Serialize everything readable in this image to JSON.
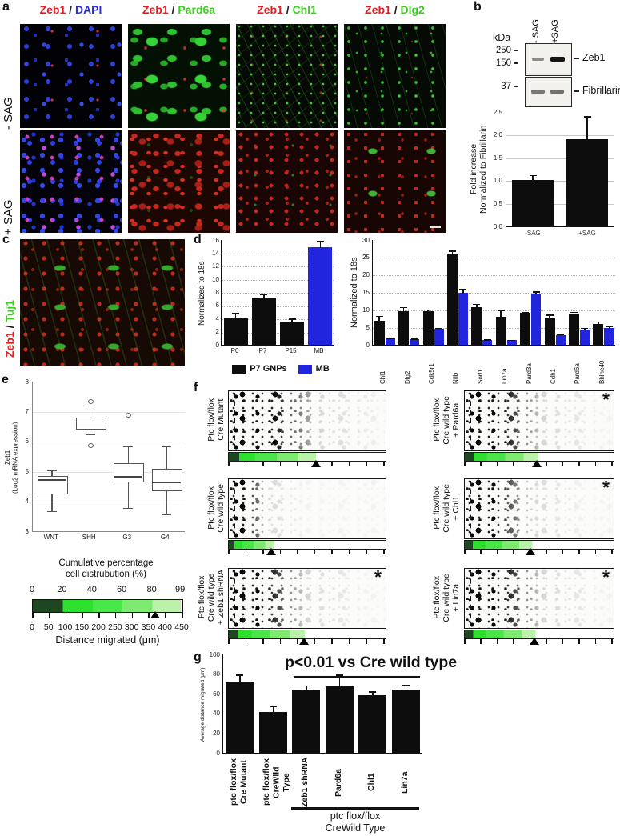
{
  "figure": {
    "panel_labels": {
      "a": "a",
      "b": "b",
      "c": "c",
      "d": "d",
      "e": "e",
      "f": "f",
      "g": "g"
    }
  },
  "panel_a": {
    "first_color": "#e02020",
    "sep_color": "#222222",
    "col_headers": [
      {
        "first": "Zeb1",
        "sep": " / ",
        "second": "DAPI",
        "second_color": "#2b2be2"
      },
      {
        "first": "Zeb1",
        "sep": " / ",
        "second": "Pard6a",
        "second_color": "#3fcc22"
      },
      {
        "first": "Zeb1",
        "sep": " / ",
        "second": "Chl1",
        "second_color": "#3fcc22"
      },
      {
        "first": "Zeb1",
        "sep": " / ",
        "second": "Dlg2",
        "second_color": "#3fcc22"
      }
    ],
    "row_labels": [
      "- SAG",
      "+ SAG"
    ]
  },
  "panel_b": {
    "blot": {
      "kda": "kDa",
      "lanes": [
        "- SAG",
        "+SAG"
      ],
      "markers": [
        "250",
        "150",
        "37"
      ],
      "bands": [
        "Zeb1",
        "Fibrillarin"
      ]
    },
    "chart_data": {
      "type": "bar",
      "ylabel_lines": [
        "Fold increase",
        "Normalized to Fibrillarin"
      ],
      "ymax": 2.5,
      "ytick_step": 0.5,
      "categories": [
        "-SAG",
        "+SAG"
      ],
      "values": [
        1.0,
        1.9
      ],
      "errors": [
        0.12,
        0.5
      ],
      "bar_color": "#0d0d0d"
    }
  },
  "panel_c": {
    "title": {
      "first": "Zeb1",
      "sep": " / ",
      "second": "Tuj1"
    },
    "first_color": "#e02020",
    "second_color": "#3fcc22"
  },
  "panel_d": {
    "chart_data_left": {
      "type": "bar",
      "ylabel": "Normalized to 18s",
      "ymax": 16,
      "ytick_step": 2,
      "categories": [
        "P0",
        "P7",
        "P15",
        "MB"
      ],
      "values": [
        4.0,
        7.2,
        3.5,
        14.8
      ],
      "errors": [
        0.85,
        0.5,
        0.5,
        1.0
      ],
      "colors": [
        "#0d0d0d",
        "#0d0d0d",
        "#0d0d0d",
        "#2126de"
      ]
    },
    "legend": [
      {
        "label": "P7 GNPs",
        "color": "#0d0d0d"
      },
      {
        "label": "MB",
        "color": "#2126de"
      }
    ],
    "chart_data_right": {
      "type": "bar",
      "ylabel": "Normalized to 18s",
      "ymax": 30,
      "ytick_step": 5,
      "categories": [
        "Chl1",
        "Dlg2",
        "Cdk5r1",
        "Nfib",
        "Sorl1",
        "Lin7a",
        "Pard3a",
        "Cdh1",
        "Pard6a",
        "Bhlhe40"
      ],
      "series": [
        {
          "name": "P7 GNPs",
          "color": "#0d0d0d",
          "values": [
            6.8,
            9.5,
            9.5,
            25.8,
            10.7,
            7.9,
            9.0,
            7.6,
            8.8,
            6.0
          ],
          "errors": [
            1.5,
            1.3,
            0.6,
            1.0,
            1.0,
            2.0,
            0.4,
            1.0,
            0.6,
            0.7
          ]
        },
        {
          "name": "MB",
          "color": "#2126de",
          "values": [
            1.8,
            1.6,
            4.5,
            14.7,
            1.4,
            1.3,
            14.6,
            2.8,
            4.4,
            4.8
          ],
          "errors": [
            0.3,
            0.2,
            0.4,
            1.2,
            0.2,
            0.2,
            0.6,
            0.3,
            0.5,
            0.5
          ]
        }
      ]
    }
  },
  "panel_e": {
    "chart_data_box": {
      "type": "boxplot",
      "ylabel_lines": [
        "Zeb1",
        "(Log2 mRNA expression)"
      ],
      "ymin": 3,
      "ymax": 8,
      "categories": [
        "WNT",
        "SHH",
        "G3",
        "G4"
      ],
      "boxes": [
        {
          "low": 3.7,
          "q1": 4.3,
          "med": 4.75,
          "q3": 4.85,
          "high": 5.05,
          "outliers": []
        },
        {
          "low": 6.25,
          "q1": 6.45,
          "med": 6.55,
          "q3": 6.8,
          "high": 7.2,
          "outliers": [
            7.35,
            5.9
          ]
        },
        {
          "low": 3.8,
          "q1": 4.7,
          "med": 4.85,
          "q3": 5.3,
          "high": 5.85,
          "outliers": [
            6.9
          ]
        },
        {
          "low": 3.6,
          "q1": 4.4,
          "med": 4.65,
          "q3": 5.1,
          "high": 5.85,
          "outliers": []
        }
      ]
    },
    "scale": {
      "title_lines": [
        "Cumulative percentage",
        "cell distrubution (%)"
      ],
      "pct_labels": [
        "0",
        "20",
        "40",
        "60",
        "80",
        "99"
      ],
      "pct_fracs": [
        0,
        0.2,
        0.4,
        0.6,
        0.8,
        0.99
      ],
      "distance_labels": [
        "0",
        "50",
        "100",
        "150",
        "200",
        "250",
        "300",
        "350",
        "400",
        "450"
      ],
      "xlabel": "Distance migrated (μm)",
      "xmax_um": 450,
      "triangle_um": 370,
      "colors": [
        "#1c4720",
        "#2ee02e",
        "#49e549",
        "#7deb6f",
        "#b9f2a8",
        "#ffffff"
      ]
    }
  },
  "panel_f": {
    "xmax_um": 450,
    "columns": [
      [
        {
          "lines": [
            "Ptc flox/flox",
            "Cre Mutant"
          ],
          "asterisk": "",
          "green_um": 250,
          "triangle_um": 253,
          "spread": 0.95
        },
        {
          "lines": [
            "Ptc flox/flox",
            "Cre wild type"
          ],
          "asterisk": "",
          "green_um": 130,
          "triangle_um": 125,
          "spread": 0.4
        },
        {
          "lines": [
            "Ptc flox/flox",
            "Cre wild type",
            "+ Zeb1 shRNA"
          ],
          "asterisk": "*",
          "green_um": 218,
          "triangle_um": 218,
          "spread": 0.8
        }
      ],
      [
        {
          "lines": [
            "Ptc flox/flox",
            "Cre wild type",
            "+ Pard6a"
          ],
          "asterisk": "*",
          "green_um": 222,
          "triangle_um": 220,
          "spread": 0.85
        },
        {
          "lines": [
            "Ptc flox/flox",
            "Cre wild type",
            "+ Chl1"
          ],
          "asterisk": "*",
          "green_um": 205,
          "triangle_um": 200,
          "spread": 0.72
        },
        {
          "lines": [
            "Ptc flox/flox",
            "Cre wild type",
            "+ Lin7a"
          ],
          "asterisk": "*",
          "green_um": 214,
          "triangle_um": 212,
          "spread": 0.85
        }
      ]
    ]
  },
  "panel_g": {
    "chart_data": {
      "type": "bar",
      "ylabel": "Average distance migrated (μm)",
      "ymax": 100,
      "ytick_step": 20,
      "categories": [
        [
          "ptc flox/flox",
          "Cre Mutant"
        ],
        [
          "ptc flox/flox",
          "CreWild Type"
        ],
        [
          "Zeb1 shRNA"
        ],
        [
          "Pard6a"
        ],
        [
          "Chl1"
        ],
        [
          "Lin7a"
        ]
      ],
      "values": [
        71,
        41,
        63,
        67,
        58,
        64
      ],
      "errors": [
        8,
        6,
        5,
        12,
        4,
        5
      ],
      "bar_color": "#0d0d0d"
    },
    "annotation": "p<0.01 vs Cre wild type",
    "bracket_label_lines": [
      "ptc flox/flox",
      "CreWild Type"
    ]
  }
}
